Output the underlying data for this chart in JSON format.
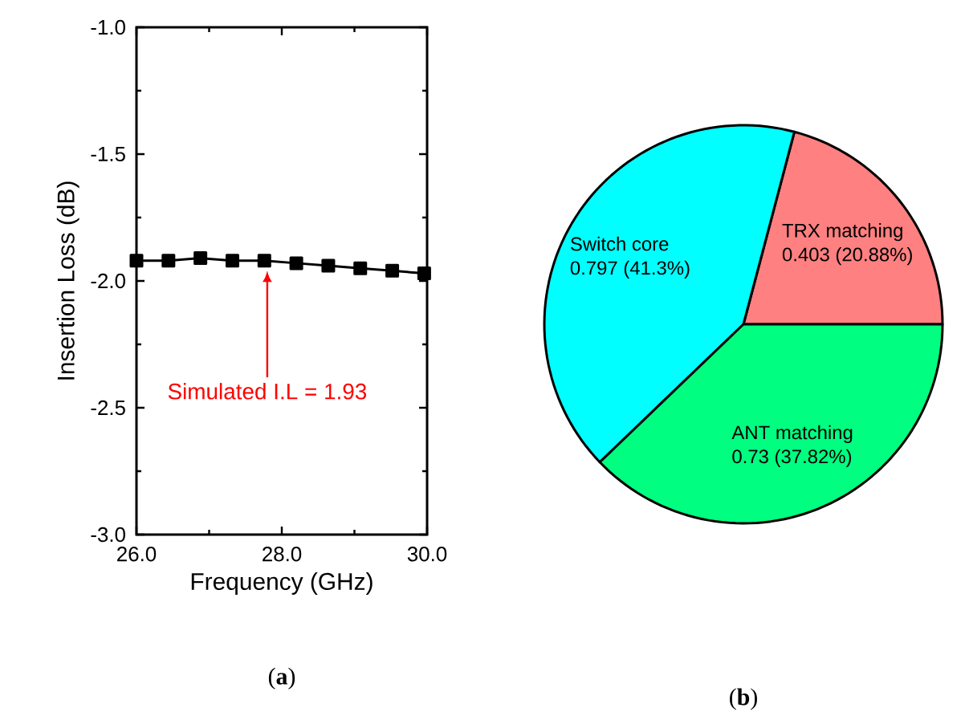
{
  "chart_data": [
    {
      "type": "line",
      "title": "(**a**)",
      "xlabel": "Frequency (GHz)",
      "ylabel": "Insertion Loss (dB)",
      "x": [
        26.0,
        26.44,
        26.88,
        27.32,
        27.76,
        28.2,
        28.64,
        29.08,
        29.52,
        29.96
      ],
      "series": [
        {
          "color": "#000000",
          "values": [
            -1.92,
            -1.92,
            -1.91,
            -1.92,
            -1.92,
            -1.93,
            -1.94,
            -1.95,
            -1.96,
            -1.97
          ]
        }
      ],
      "xlim": [
        26.0,
        30.0
      ],
      "ylim": [
        -3.0,
        -1.0
      ],
      "xticks": [
        {
          "value": 26,
          "label": "26.0"
        },
        {
          "value": 28,
          "label": "28.0"
        },
        {
          "value": 30,
          "label": "30.0"
        }
      ],
      "yticks": [
        {
          "value": -3,
          "label": "-3.0"
        },
        {
          "value": -2.5,
          "label": "-2.5"
        },
        {
          "value": -2,
          "label": "-2.0"
        },
        {
          "value": -1.5,
          "label": "-1.5"
        },
        {
          "value": -1,
          "label": "-1.0"
        }
      ],
      "marker": "square",
      "line_style": "solid",
      "annotations": [
        "Simulated I.L = 1.93"
      ]
    },
    {
      "type": "pie",
      "title": "(**b**)",
      "categories": [
        "TRX matching",
        "Switch core",
        "ANT matching"
      ],
      "values": [
        0.403,
        0.797,
        0.73
      ],
      "colors": [
        "#ff8080",
        "#00ffff",
        "#00ff80"
      ],
      "value_labels": [
        "0.403 (20.88%)",
        "0.797 (41.3%)",
        "0.73 (37.82%)"
      ]
    }
  ]
}
